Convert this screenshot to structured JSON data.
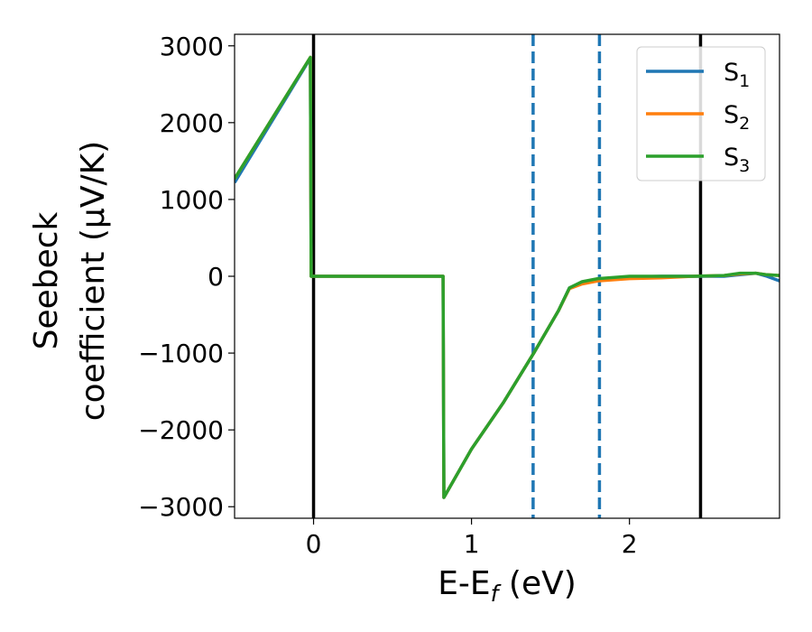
{
  "chart_data": {
    "type": "line",
    "xlabel": "E-E",
    "xlabel_sub": "f",
    "xlabel_unit": " (eV)",
    "ylabel_line1": "Seebeck",
    "ylabel_line2": "coefficient  (μV/K)",
    "xlim": [
      -0.5,
      2.95
    ],
    "ylim": [
      -3150,
      3150
    ],
    "xticks": [
      0,
      1,
      2
    ],
    "xtick_labels": [
      "0",
      "1",
      "2"
    ],
    "yticks": [
      3000,
      2000,
      1000,
      0,
      -1000,
      -2000,
      -3000
    ],
    "ytick_labels": [
      "3000",
      "2000",
      "1000",
      "0",
      "−1000",
      "−2000",
      "−3000"
    ],
    "grid": false,
    "legend_position": "top-right",
    "vlines": [
      {
        "x": 0.0,
        "style": "solid",
        "color": "#000000"
      },
      {
        "x": 2.45,
        "style": "solid",
        "color": "#000000"
      },
      {
        "x": 1.39,
        "style": "dashed",
        "color": "#1f77b4"
      },
      {
        "x": 1.81,
        "style": "dashed",
        "color": "#1f77b4"
      }
    ],
    "series": [
      {
        "name": "S",
        "sub": "1",
        "color": "#1f77b4",
        "x": [
          -0.5,
          -0.02,
          -0.015,
          0.82,
          0.825,
          1.0,
          1.2,
          1.4,
          1.55,
          1.62,
          1.7,
          1.8,
          2.0,
          2.2,
          2.4,
          2.6,
          2.7,
          2.8,
          2.87,
          2.95
        ],
        "y": [
          1220,
          2840,
          0,
          0,
          -2880,
          -2250,
          -1650,
          -980,
          -450,
          -150,
          -80,
          -40,
          -10,
          0,
          0,
          0,
          20,
          40,
          0,
          -60
        ]
      },
      {
        "name": "S",
        "sub": "2",
        "color": "#ff7f0e",
        "x": [
          -0.5,
          -0.02,
          -0.015,
          0.82,
          0.825,
          1.0,
          1.2,
          1.4,
          1.55,
          1.62,
          1.7,
          1.8,
          2.0,
          2.2,
          2.4,
          2.6,
          2.7,
          2.8,
          2.87,
          2.95
        ],
        "y": [
          1270,
          2850,
          0,
          0,
          -2880,
          -2250,
          -1650,
          -980,
          -450,
          -160,
          -100,
          -60,
          -30,
          -20,
          0,
          10,
          30,
          40,
          20,
          10
        ]
      },
      {
        "name": "S",
        "sub": "3",
        "color": "#2ca02c",
        "x": [
          -0.5,
          -0.02,
          -0.015,
          0.82,
          0.825,
          1.0,
          1.2,
          1.4,
          1.55,
          1.62,
          1.7,
          1.8,
          2.0,
          2.2,
          2.4,
          2.6,
          2.7,
          2.8,
          2.87,
          2.95
        ],
        "y": [
          1270,
          2850,
          0,
          0,
          -2880,
          -2250,
          -1650,
          -980,
          -450,
          -150,
          -70,
          -30,
          0,
          0,
          0,
          10,
          40,
          40,
          20,
          10
        ]
      }
    ]
  }
}
